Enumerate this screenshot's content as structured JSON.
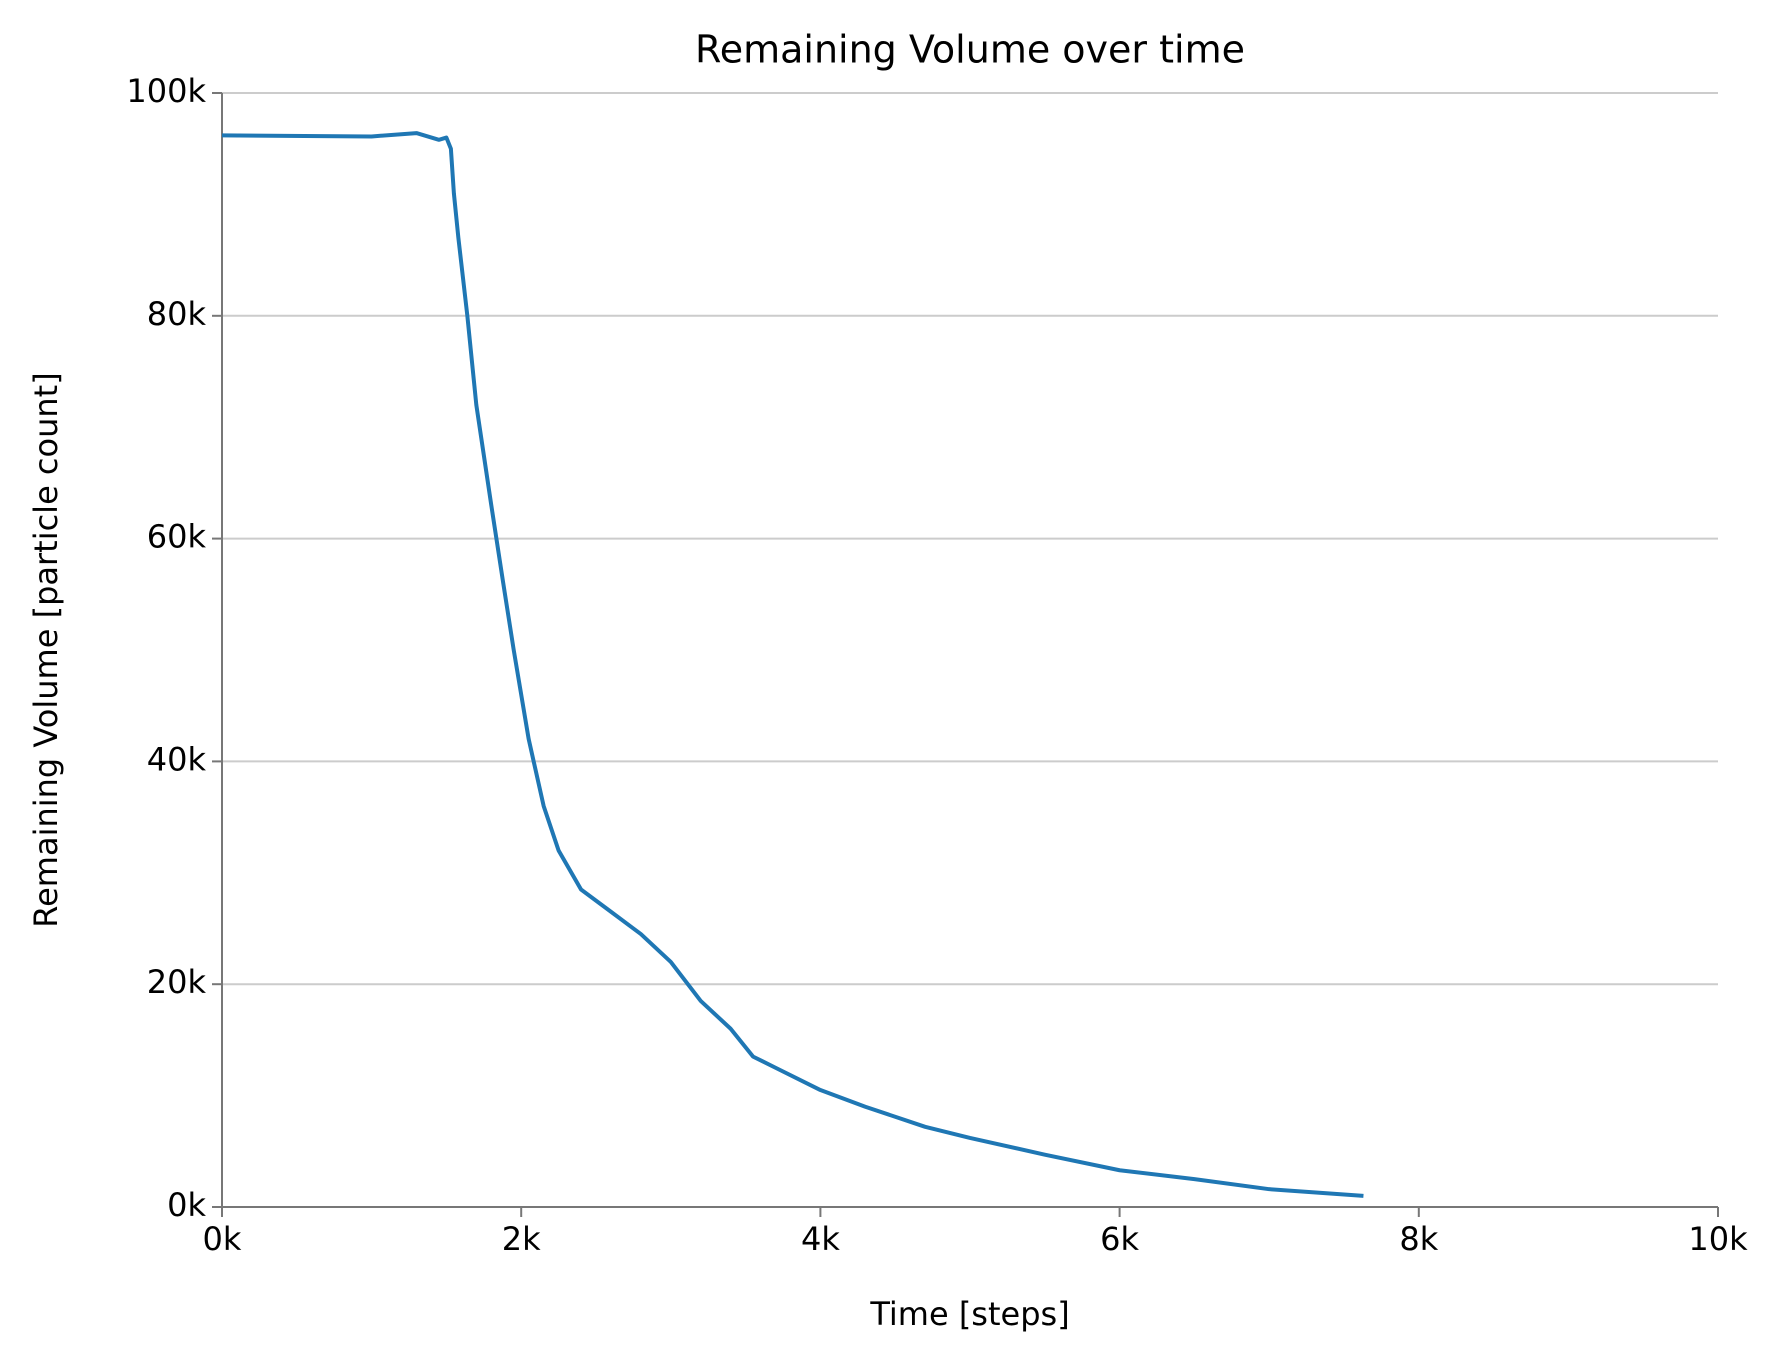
{
  "chart_data": {
    "type": "line",
    "title": "Remaining Volume over time",
    "x_label": "Time [steps]",
    "y_label": "Remaining Volume [particle count]",
    "series": [
      {
        "color": "#1f77b4",
        "x": [
          0,
          1000,
          1300,
          1450,
          1500,
          1530,
          1550,
          1580,
          1640,
          1700,
          1800,
          1880,
          1950,
          2050,
          2150,
          2250,
          2400,
          2600,
          2800,
          3000,
          3200,
          3400,
          3550,
          3700,
          4000,
          4300,
          4700,
          5000,
          5500,
          6000,
          6500,
          7000,
          7630
        ],
        "values": [
          96200,
          96100,
          96400,
          95800,
          96000,
          95000,
          91000,
          87000,
          80000,
          72000,
          63000,
          56000,
          50000,
          42000,
          36000,
          32000,
          28500,
          26500,
          24500,
          22000,
          18500,
          16000,
          13500,
          12500,
          10500,
          9000,
          7200,
          6200,
          4700,
          3300,
          2500,
          1600,
          1000
        ]
      }
    ],
    "xlim": [
      0,
      10000
    ],
    "xticks": [
      {
        "value": 0,
        "label": "0k"
      },
      {
        "value": 2000,
        "label": "2k"
      },
      {
        "value": 4000,
        "label": "4k"
      },
      {
        "value": 6000,
        "label": "6k"
      },
      {
        "value": 8000,
        "label": "8k"
      },
      {
        "value": 10000,
        "label": "10k"
      }
    ],
    "ylim": [
      0,
      100000
    ],
    "yticks": [
      {
        "value": 0,
        "label": "0k"
      },
      {
        "value": 20000,
        "label": "20k"
      },
      {
        "value": 40000,
        "label": "40k"
      },
      {
        "value": 60000,
        "label": "60k"
      },
      {
        "value": 80000,
        "label": "80k"
      },
      {
        "value": 100000,
        "label": "100k"
      }
    ],
    "grid": "y"
  }
}
